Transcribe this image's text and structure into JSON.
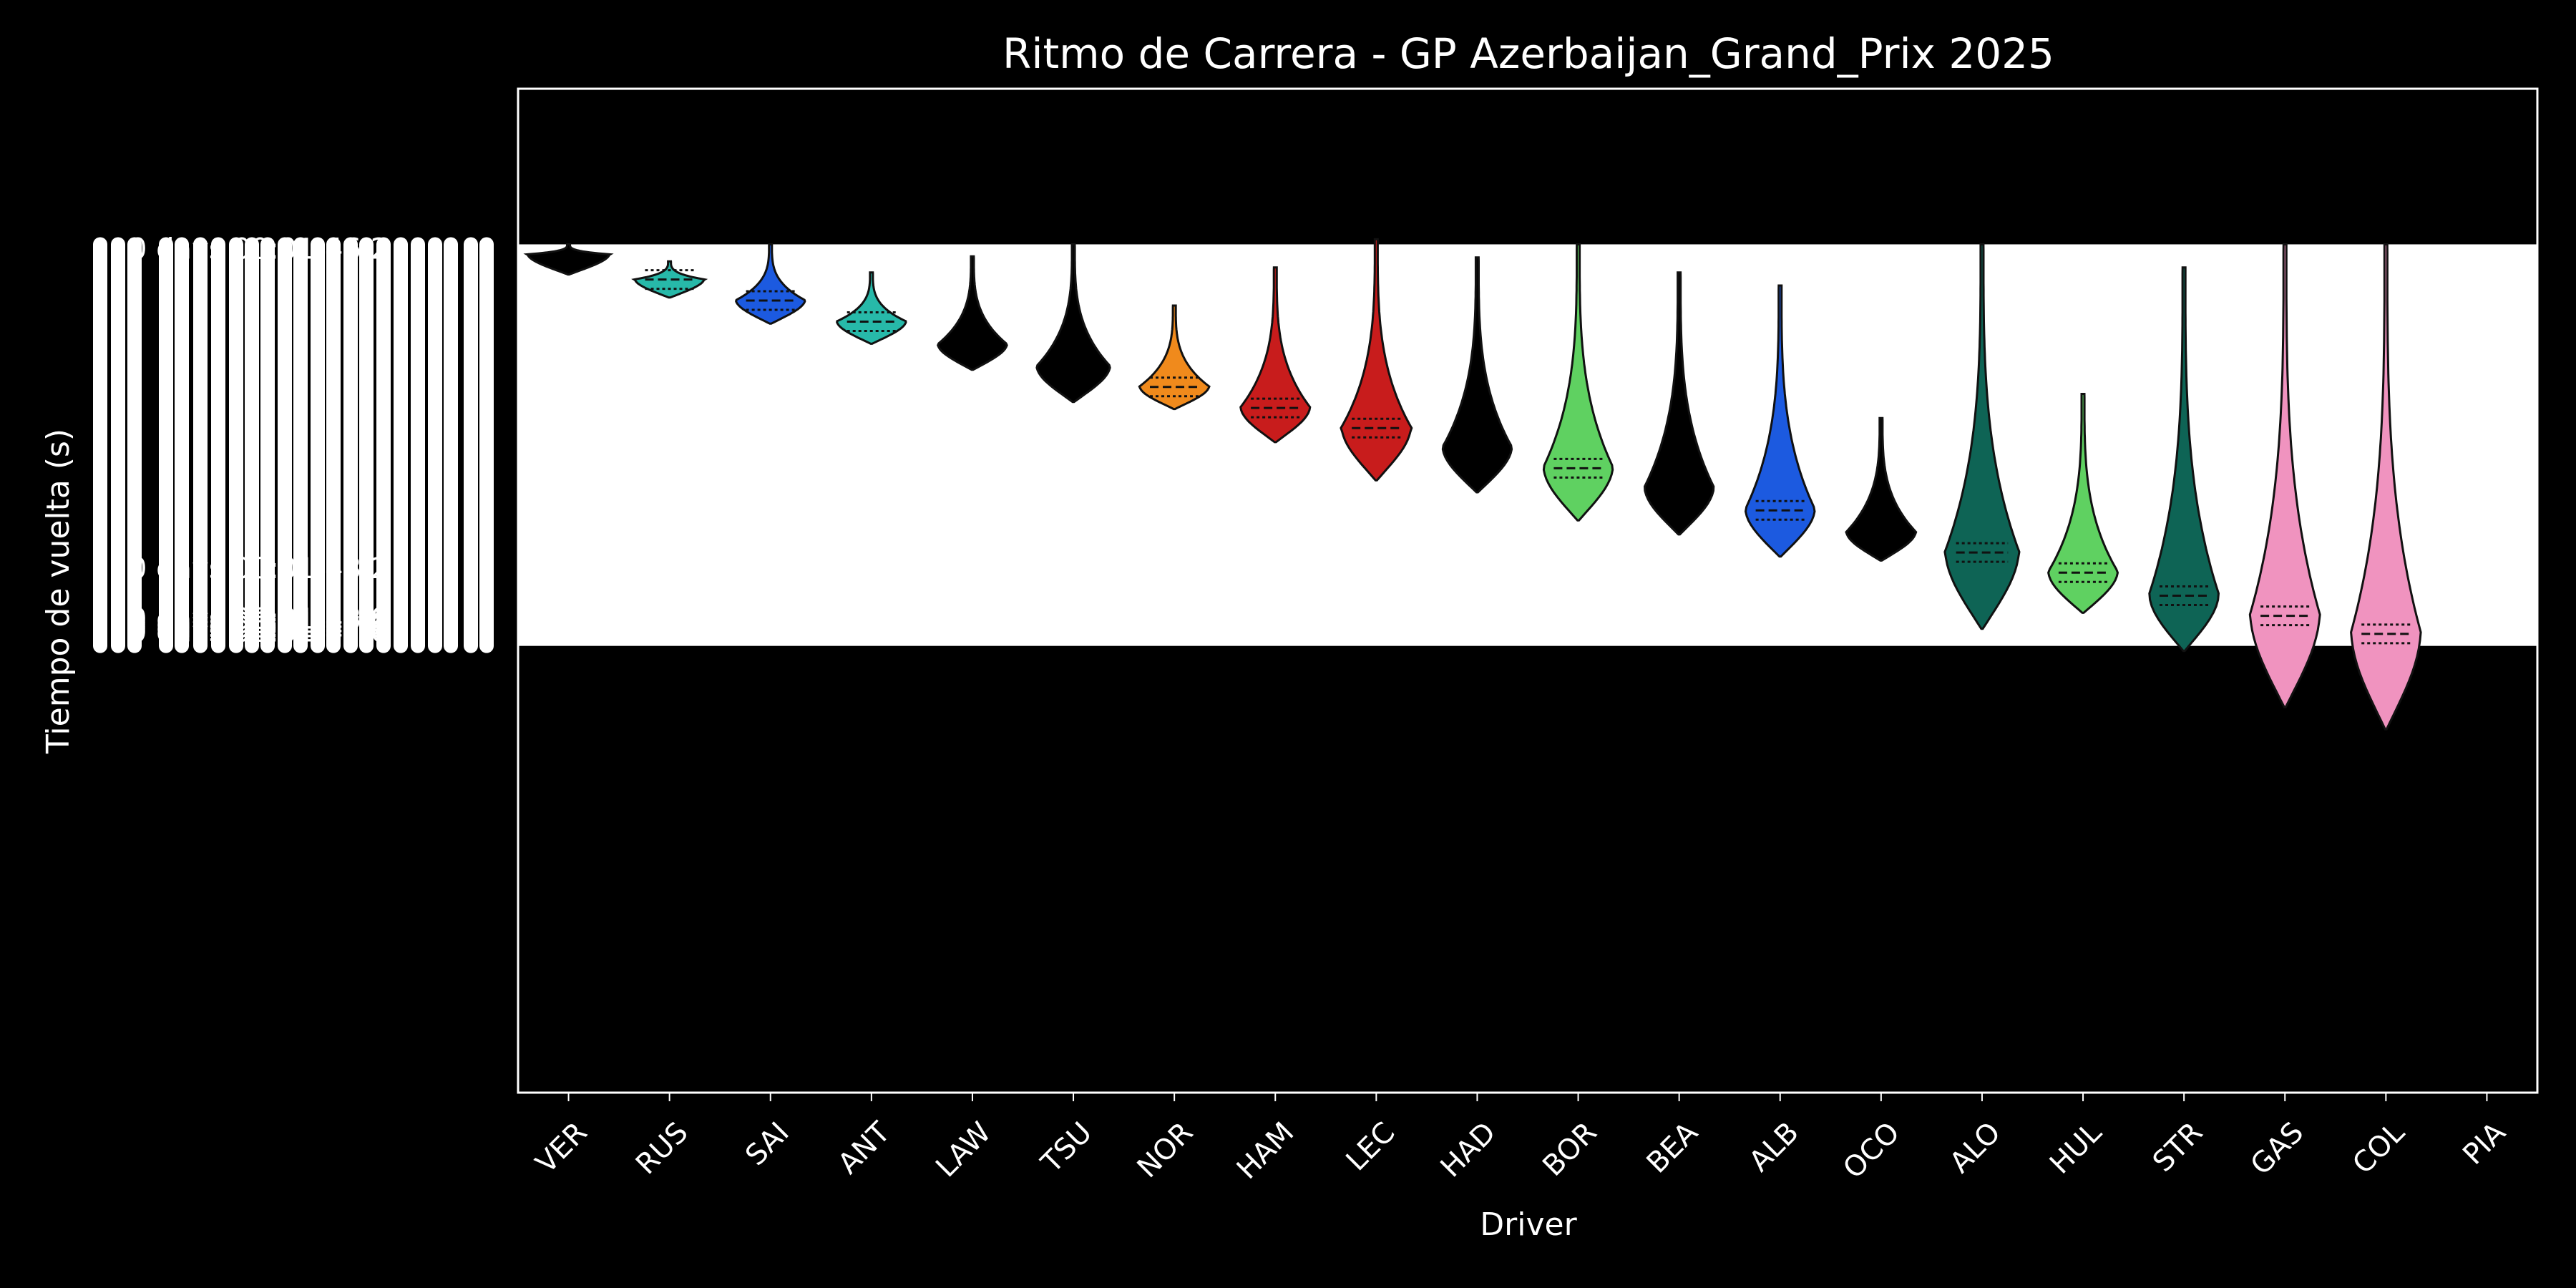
{
  "chart_data": {
    "type": "violin",
    "title": "Ritmo de Carrera - GP Azerbaijan_Grand_Prix 2025",
    "xlabel": "Driver",
    "ylabel": "Tiempo de vuelta (s)",
    "categories": [
      "VER",
      "RUS",
      "SAI",
      "ANT",
      "LAW",
      "TSU",
      "NOR",
      "HAM",
      "LEC",
      "HAD",
      "BOR",
      "BEA",
      "ALB",
      "OCO",
      "ALO",
      "HUL",
      "STR",
      "GAS",
      "COL",
      "PIA"
    ],
    "ytick_labels_visible": [
      "0 days 00:01:46.2",
      "0 days 00:01:48.2",
      "0 days 00:01:48.0",
      "0 days 00:01:47.6",
      "0 days 00:01:47.2",
      "0 days 00:01:47.0"
    ],
    "band": {
      "y_top": 0.155,
      "y_bottom": 0.555
    },
    "ylim_fraction": [
      0.0,
      1.0
    ],
    "grid": false,
    "violins": [
      {
        "driver": "VER",
        "color": "#000000",
        "lo": 0.155,
        "hi": 0.185,
        "mode": 0.165,
        "width": 0.95,
        "quartiles": false
      },
      {
        "driver": "RUS",
        "color": "#27b9a9",
        "lo": 0.172,
        "hi": 0.208,
        "mode": 0.19,
        "width": 0.8,
        "quartiles": true
      },
      {
        "driver": "SAI",
        "color": "#1c5ae0",
        "lo": 0.155,
        "hi": 0.234,
        "mode": 0.211,
        "width": 0.8,
        "quartiles": true
      },
      {
        "driver": "ANT",
        "color": "#27b9a9",
        "lo": 0.183,
        "hi": 0.254,
        "mode": 0.232,
        "width": 0.8,
        "quartiles": true
      },
      {
        "driver": "LAW",
        "color": "#000000",
        "lo": 0.167,
        "hi": 0.28,
        "mode": 0.255,
        "width": 0.8,
        "quartiles": false
      },
      {
        "driver": "TSU",
        "color": "#000000",
        "lo": 0.155,
        "hi": 0.312,
        "mode": 0.277,
        "width": 0.85,
        "quartiles": false
      },
      {
        "driver": "NOR",
        "color": "#f08a1c",
        "lo": 0.216,
        "hi": 0.319,
        "mode": 0.297,
        "width": 0.8,
        "quartiles": true
      },
      {
        "driver": "HAM",
        "color": "#c81c1c",
        "lo": 0.178,
        "hi": 0.352,
        "mode": 0.318,
        "width": 0.8,
        "quartiles": true
      },
      {
        "driver": "LEC",
        "color": "#c81c1c",
        "lo": 0.15,
        "hi": 0.39,
        "mode": 0.338,
        "width": 0.8,
        "quartiles": true
      },
      {
        "driver": "HAD",
        "color": "#000000",
        "lo": 0.168,
        "hi": 0.402,
        "mode": 0.358,
        "width": 0.8,
        "quartiles": false
      },
      {
        "driver": "BOR",
        "color": "#5fd161",
        "lo": 0.155,
        "hi": 0.43,
        "mode": 0.378,
        "width": 0.8,
        "quartiles": true
      },
      {
        "driver": "BEA",
        "color": "#000000",
        "lo": 0.183,
        "hi": 0.444,
        "mode": 0.398,
        "width": 0.8,
        "quartiles": false
      },
      {
        "driver": "ALB",
        "color": "#1c5ae0",
        "lo": 0.196,
        "hi": 0.466,
        "mode": 0.42,
        "width": 0.8,
        "quartiles": true
      },
      {
        "driver": "OCO",
        "color": "#000000",
        "lo": 0.328,
        "hi": 0.47,
        "mode": 0.442,
        "width": 0.8,
        "quartiles": false
      },
      {
        "driver": "ALO",
        "color": "#0e6455",
        "lo": 0.155,
        "hi": 0.538,
        "mode": 0.462,
        "width": 0.85,
        "quartiles": true
      },
      {
        "driver": "HUL",
        "color": "#5fd161",
        "lo": 0.304,
        "hi": 0.522,
        "mode": 0.482,
        "width": 0.8,
        "quartiles": true
      },
      {
        "driver": "STR",
        "color": "#0e6455",
        "lo": 0.178,
        "hi": 0.56,
        "mode": 0.505,
        "width": 0.8,
        "quartiles": true
      },
      {
        "driver": "GAS",
        "color": "#f093bf",
        "lo": 0.155,
        "hi": 0.616,
        "mode": 0.525,
        "width": 0.8,
        "quartiles": true
      },
      {
        "driver": "COL",
        "color": "#f093bf",
        "lo": 0.155,
        "hi": 0.638,
        "mode": 0.543,
        "width": 0.8,
        "quartiles": true
      },
      {
        "driver": "PIA",
        "color": "#000000",
        "lo": null,
        "hi": null,
        "mode": null,
        "width": 0,
        "quartiles": false
      }
    ]
  }
}
